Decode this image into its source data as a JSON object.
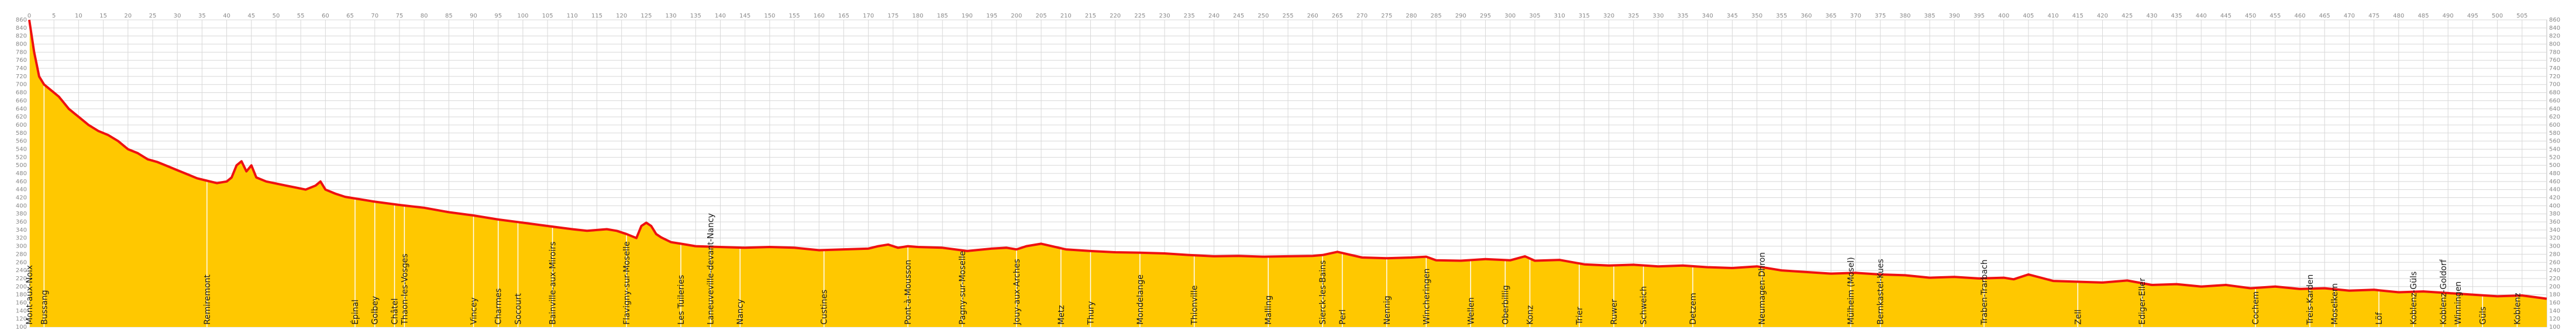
{
  "chart_data": {
    "type": "area",
    "title": "",
    "xlabel": "",
    "ylabel": "",
    "xlim": [
      0,
      510
    ],
    "ylim": [
      100,
      860
    ],
    "x_ticks": [
      0,
      5,
      10,
      15,
      20,
      25,
      30,
      35,
      40,
      45,
      50,
      55,
      60,
      65,
      70,
      75,
      80,
      85,
      90,
      95,
      100,
      105,
      110,
      115,
      120,
      125,
      130,
      135,
      140,
      145,
      150,
      155,
      160,
      165,
      170,
      175,
      180,
      185,
      190,
      195,
      200,
      205,
      210,
      215,
      220,
      225,
      230,
      235,
      240,
      245,
      250,
      255,
      260,
      265,
      270,
      275,
      280,
      285,
      290,
      295,
      300,
      305,
      310,
      315,
      320,
      325,
      330,
      335,
      340,
      345,
      350,
      355,
      360,
      365,
      370,
      375,
      380,
      385,
      390,
      395,
      400,
      405,
      410,
      415,
      420,
      425,
      430,
      435,
      440,
      445,
      450,
      455,
      460,
      465,
      470,
      475,
      480,
      485,
      490,
      495,
      500,
      505
    ],
    "y_ticks": [
      100,
      120,
      140,
      160,
      180,
      200,
      220,
      240,
      260,
      280,
      300,
      320,
      340,
      360,
      380,
      400,
      420,
      440,
      460,
      480,
      500,
      520,
      540,
      560,
      580,
      600,
      620,
      640,
      660,
      680,
      700,
      720,
      740,
      760,
      780,
      800,
      820,
      840,
      860
    ],
    "grid": true,
    "fill_color": "#ffc800",
    "line_color": "#ee1111",
    "profile": {
      "x": [
        0,
        0.5,
        1,
        1.5,
        2,
        3,
        4,
        5,
        6,
        7,
        8,
        10,
        12,
        14,
        16,
        18,
        20,
        22,
        24,
        26,
        28,
        30,
        32,
        34,
        36,
        38,
        40,
        41,
        42,
        43,
        44,
        45,
        46,
        48,
        50,
        52,
        54,
        56,
        58,
        59,
        60,
        62,
        64,
        66,
        70,
        75,
        80,
        85,
        90,
        95,
        100,
        105,
        110,
        113,
        115,
        117,
        119,
        121,
        123,
        124,
        125,
        126,
        127,
        128,
        130,
        132,
        135,
        140,
        145,
        150,
        155,
        160,
        165,
        170,
        172,
        174,
        176,
        178,
        180,
        185,
        190,
        195,
        198,
        200,
        202,
        205,
        210,
        215,
        220,
        225,
        230,
        235,
        240,
        245,
        250,
        255,
        260,
        262,
        265,
        270,
        275,
        280,
        283,
        285,
        290,
        295,
        300,
        303,
        305,
        310,
        315,
        320,
        325,
        330,
        335,
        340,
        345,
        350,
        355,
        360,
        365,
        370,
        375,
        380,
        385,
        390,
        395,
        400,
        402,
        405,
        410,
        415,
        420,
        425,
        430,
        435,
        440,
        445,
        450,
        455,
        460,
        465,
        470,
        475,
        480,
        485,
        490,
        495,
        500,
        505,
        510
      ],
      "y": [
        860,
        820,
        780,
        750,
        720,
        700,
        690,
        680,
        670,
        655,
        640,
        620,
        600,
        585,
        575,
        560,
        540,
        530,
        515,
        508,
        498,
        488,
        478,
        468,
        462,
        456,
        460,
        470,
        500,
        510,
        485,
        500,
        470,
        460,
        455,
        450,
        445,
        440,
        450,
        460,
        440,
        430,
        422,
        418,
        410,
        402,
        395,
        384,
        376,
        366,
        358,
        350,
        342,
        338,
        340,
        342,
        338,
        330,
        320,
        350,
        358,
        350,
        330,
        322,
        310,
        306,
        300,
        298,
        296,
        298,
        296,
        290,
        292,
        294,
        300,
        304,
        296,
        300,
        298,
        296,
        288,
        294,
        296,
        292,
        300,
        306,
        292,
        288,
        285,
        284,
        282,
        278,
        275,
        276,
        274,
        275,
        276,
        278,
        286,
        272,
        270,
        272,
        274,
        265,
        264,
        268,
        265,
        275,
        264,
        266,
        255,
        252,
        254,
        250,
        252,
        248,
        246,
        250,
        240,
        236,
        232,
        234,
        230,
        228,
        222,
        224,
        220,
        222,
        218,
        230,
        214,
        212,
        210,
        215,
        204,
        206,
        200,
        204,
        196,
        200,
        194,
        196,
        190,
        192,
        186,
        188,
        184,
        180,
        176,
        178,
        170
      ]
    },
    "towns": [
      {
        "name": "Mont-aux-Noix",
        "x": 0
      },
      {
        "name": "Bussang",
        "x": 3
      },
      {
        "name": "Remiremont",
        "x": 36
      },
      {
        "name": "Épinal",
        "x": 66
      },
      {
        "name": "Golbey",
        "x": 70
      },
      {
        "name": "Châtel",
        "x": 74
      },
      {
        "name": "Thaon-les-Vosges",
        "x": 76
      },
      {
        "name": "Vincey",
        "x": 90
      },
      {
        "name": "Charmes",
        "x": 95
      },
      {
        "name": "Socourt",
        "x": 99
      },
      {
        "name": "Bainville-aux-Miroirs",
        "x": 106
      },
      {
        "name": "Flavigny-sur-Moselle",
        "x": 121
      },
      {
        "name": "Les Tuileries",
        "x": 132
      },
      {
        "name": "Laneuveville-devant-Nancy",
        "x": 138
      },
      {
        "name": "Nancy",
        "x": 144
      },
      {
        "name": "Custines",
        "x": 161
      },
      {
        "name": "Pont-à-Mousson",
        "x": 178
      },
      {
        "name": "Pagny-sur-Moselle",
        "x": 189
      },
      {
        "name": "Jouy-aux-Arches",
        "x": 200
      },
      {
        "name": "Metz",
        "x": 209
      },
      {
        "name": "Thury",
        "x": 215
      },
      {
        "name": "Mondelange",
        "x": 225
      },
      {
        "name": "Thionville",
        "x": 236
      },
      {
        "name": "Malling",
        "x": 251
      },
      {
        "name": "Sierck-les-Bains",
        "x": 262
      },
      {
        "name": "Perl",
        "x": 266
      },
      {
        "name": "Nennig",
        "x": 275
      },
      {
        "name": "Wincheringen",
        "x": 283
      },
      {
        "name": "Wellen",
        "x": 292
      },
      {
        "name": "Oberbillig",
        "x": 299
      },
      {
        "name": "Konz",
        "x": 304
      },
      {
        "name": "Trier",
        "x": 314
      },
      {
        "name": "Ruwer",
        "x": 321
      },
      {
        "name": "Schweich",
        "x": 327
      },
      {
        "name": "Detzem",
        "x": 337
      },
      {
        "name": "Neumagen-Dhron",
        "x": 351
      },
      {
        "name": "Mülheim (Mosel)",
        "x": 369
      },
      {
        "name": "Bernkastel-Kues",
        "x": 375
      },
      {
        "name": "Traben-Trarbach",
        "x": 396
      },
      {
        "name": "Zell",
        "x": 415
      },
      {
        "name": "Ediger-Eller",
        "x": 428
      },
      {
        "name": "Cochem",
        "x": 451
      },
      {
        "name": "Treis-Karden",
        "x": 462
      },
      {
        "name": "Moselkern",
        "x": 467
      },
      {
        "name": "Löf",
        "x": 476
      },
      {
        "name": "Koblenz-Güls",
        "x": 483
      },
      {
        "name": "Koblenz-Goldorf",
        "x": 489
      },
      {
        "name": "Winningen",
        "x": 492
      },
      {
        "name": "Güls",
        "x": 497
      },
      {
        "name": "Koblenz",
        "x": 504
      }
    ]
  }
}
